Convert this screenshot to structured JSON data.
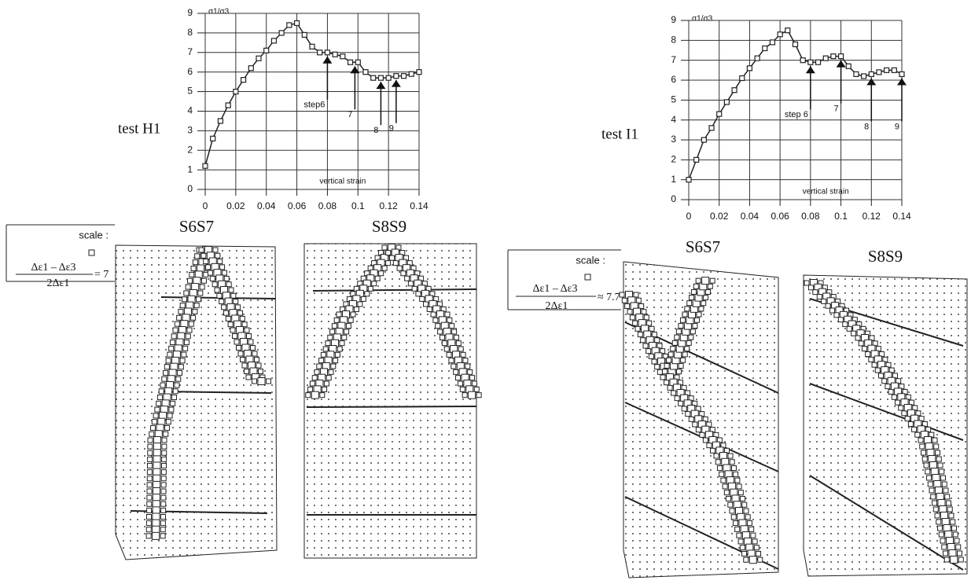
{
  "chart_data": [
    {
      "type": "line",
      "title": "test H1",
      "y_label": "σ1/σ3",
      "x_label": "vertical strain",
      "x": [
        0,
        0.005,
        0.01,
        0.015,
        0.02,
        0.025,
        0.03,
        0.035,
        0.04,
        0.045,
        0.05,
        0.055,
        0.06,
        0.065,
        0.07,
        0.075,
        0.08,
        0.085,
        0.09,
        0.095,
        0.1,
        0.105,
        0.11,
        0.115,
        0.12,
        0.125,
        0.13,
        0.135,
        0.14
      ],
      "series": [
        {
          "color": "#222222",
          "values": [
            1.2,
            2.6,
            3.5,
            4.3,
            5.0,
            5.6,
            6.2,
            6.7,
            7.1,
            7.6,
            8.0,
            8.4,
            8.5,
            7.9,
            7.3,
            7.0,
            7.0,
            6.9,
            6.8,
            6.5,
            6.5,
            6.0,
            5.7,
            5.7,
            5.7,
            5.8,
            5.8,
            5.9,
            6.0
          ]
        }
      ],
      "xlim": [
        0,
        0.14
      ],
      "ylim": [
        0,
        9
      ],
      "xticks": [
        0,
        0.02,
        0.04,
        0.06,
        0.08,
        0.1,
        0.12,
        0.14
      ],
      "yticks": [
        0,
        1,
        2,
        3,
        4,
        5,
        6,
        7,
        8,
        9
      ],
      "grid": true,
      "annotations": [
        {
          "text": "step6",
          "x": 0.08
        },
        {
          "text": "7",
          "x": 0.098
        },
        {
          "text": "8",
          "x": 0.115
        },
        {
          "text": "9",
          "x": 0.125
        }
      ]
    },
    {
      "type": "line",
      "title": "test I1",
      "y_label": "σ1/σ3",
      "x_label": "vertical strain",
      "x": [
        0,
        0.005,
        0.01,
        0.015,
        0.02,
        0.025,
        0.03,
        0.035,
        0.04,
        0.045,
        0.05,
        0.055,
        0.06,
        0.065,
        0.07,
        0.075,
        0.08,
        0.085,
        0.09,
        0.095,
        0.1,
        0.105,
        0.11,
        0.115,
        0.12,
        0.125,
        0.13,
        0.135,
        0.14
      ],
      "series": [
        {
          "color": "#222222",
          "values": [
            1.0,
            2.0,
            3.0,
            3.6,
            4.3,
            4.9,
            5.5,
            6.1,
            6.6,
            7.1,
            7.6,
            7.9,
            8.3,
            8.5,
            7.8,
            7.0,
            6.9,
            6.9,
            7.1,
            7.2,
            7.2,
            6.7,
            6.3,
            6.2,
            6.3,
            6.4,
            6.5,
            6.5,
            6.3
          ]
        }
      ],
      "xlim": [
        0,
        0.14
      ],
      "ylim": [
        0,
        9
      ],
      "xticks": [
        0,
        0.02,
        0.04,
        0.06,
        0.08,
        0.1,
        0.12,
        0.14
      ],
      "yticks": [
        0,
        1,
        2,
        3,
        4,
        5,
        6,
        7,
        8,
        9
      ],
      "grid": true,
      "annotations": [
        {
          "text": "step 6",
          "x": 0.08
        },
        {
          "text": "7",
          "x": 0.1
        },
        {
          "text": "8",
          "x": 0.12
        },
        {
          "text": "9",
          "x": 0.14
        }
      ]
    }
  ],
  "panels": [
    {
      "label": "S6S7"
    },
    {
      "label": "S8S9"
    },
    {
      "label": "S6S7"
    },
    {
      "label": "S8S9"
    }
  ],
  "scale_boxes": [
    {
      "title": "scale :",
      "numerator": "Δε1 – Δε3",
      "denominator": "2Δε1",
      "result": "= 7"
    },
    {
      "title": "scale :",
      "numerator": "Δε1 – Δε3",
      "denominator": "2Δε1",
      "result": "≈ 7.7"
    }
  ]
}
